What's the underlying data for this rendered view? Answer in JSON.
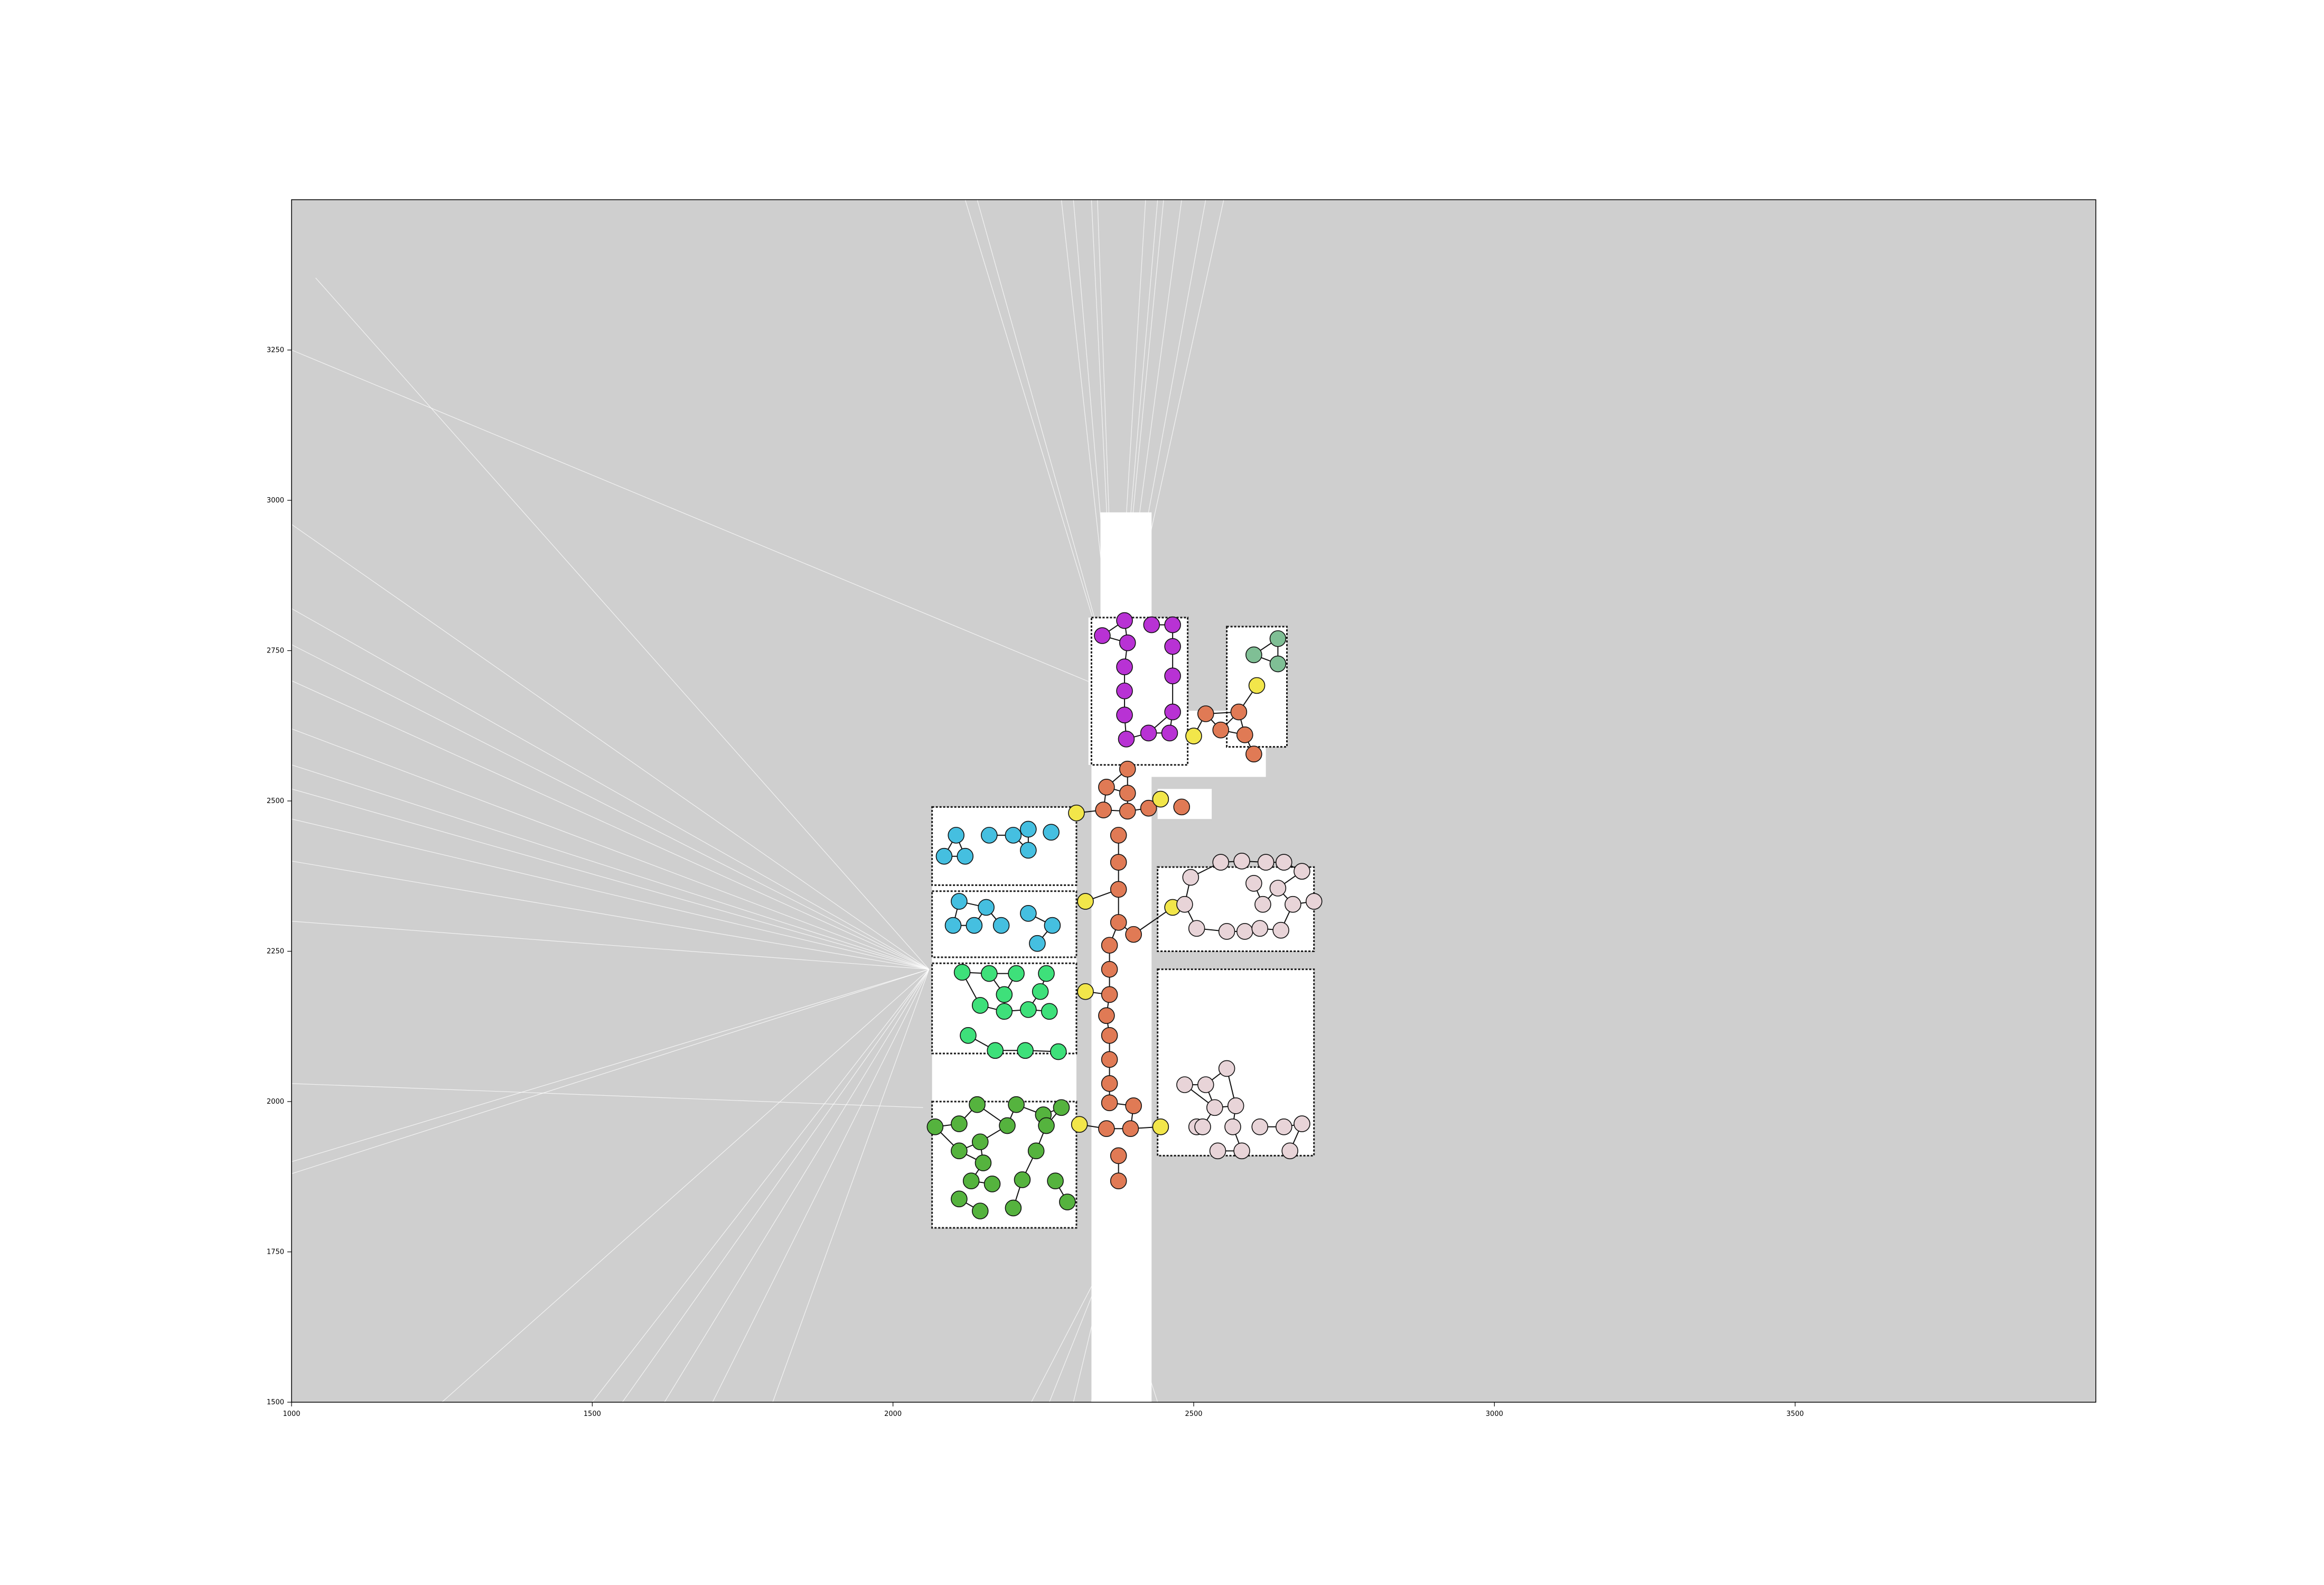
{
  "colors": {
    "background": "#cfcfcf",
    "free_space": "#ffffff",
    "axes_frame": "#000000",
    "corridor": "#e07a55",
    "door": "#f2e64a",
    "room_top": "#b832d4",
    "room_top_right": "#7fbf95",
    "room_blue": "#45bfe0",
    "room_green": "#3ee07a",
    "room_darkgreen": "#55b33e",
    "room_pink": "#e8d4d8"
  },
  "axes": {
    "x_ticks": [
      "1000",
      "1500",
      "2000",
      "2500",
      "3000",
      "3500"
    ],
    "y_ticks": [
      "3250",
      "3000",
      "2750",
      "2500",
      "2250",
      "2000",
      "1750",
      "1500"
    ],
    "xlim": [
      1000,
      4000
    ],
    "ylim": [
      1500,
      3500
    ]
  },
  "chart_data": {
    "type": "scatter",
    "description_free": true,
    "x_tick_values": [
      1000,
      1500,
      2000,
      2500,
      3000,
      3500
    ],
    "y_tick_values": [
      1500,
      1750,
      2000,
      2250,
      2500,
      2750,
      3000,
      3250
    ],
    "groups": {
      "corridor": [
        [
          2390,
          2553
        ],
        [
          2355,
          2523
        ],
        [
          2390,
          2513
        ],
        [
          2425,
          2488
        ],
        [
          2350,
          2485
        ],
        [
          2390,
          2483
        ],
        [
          2480,
          2490
        ],
        [
          2375,
          2443
        ],
        [
          2375,
          2398
        ],
        [
          2375,
          2353
        ],
        [
          2375,
          2298
        ],
        [
          2360,
          2260
        ],
        [
          2400,
          2278
        ],
        [
          2360,
          2220
        ],
        [
          2360,
          2178
        ],
        [
          2355,
          2143
        ],
        [
          2360,
          2110
        ],
        [
          2360,
          2070
        ],
        [
          2360,
          2030
        ],
        [
          2360,
          1998
        ],
        [
          2355,
          1955
        ],
        [
          2395,
          1955
        ],
        [
          2400,
          1993
        ],
        [
          2375,
          1910
        ],
        [
          2375,
          1868
        ],
        [
          2520,
          2645
        ],
        [
          2575,
          2648
        ],
        [
          2545,
          2618
        ],
        [
          2585,
          2610
        ],
        [
          2600,
          2578
        ]
      ],
      "door": [
        [
          2305,
          2480
        ],
        [
          2445,
          2503
        ],
        [
          2320,
          2333
        ],
        [
          2465,
          2323
        ],
        [
          2320,
          2183
        ],
        [
          2310,
          1962
        ],
        [
          2445,
          1958
        ],
        [
          2500,
          2608
        ],
        [
          2605,
          2692
        ]
      ],
      "room_top": [
        [
          2348,
          2775
        ],
        [
          2385,
          2800
        ],
        [
          2390,
          2763
        ],
        [
          2385,
          2723
        ],
        [
          2385,
          2683
        ],
        [
          2385,
          2643
        ],
        [
          2388,
          2603
        ],
        [
          2430,
          2793
        ],
        [
          2465,
          2793
        ],
        [
          2465,
          2757
        ],
        [
          2465,
          2708
        ],
        [
          2465,
          2648
        ],
        [
          2460,
          2613
        ],
        [
          2425,
          2613
        ]
      ],
      "room_top_right": [
        [
          2600,
          2743
        ],
        [
          2640,
          2770
        ],
        [
          2640,
          2728
        ]
      ],
      "room_blue": [
        [
          2085,
          2408
        ],
        [
          2105,
          2443
        ],
        [
          2120,
          2408
        ],
        [
          2160,
          2443
        ],
        [
          2200,
          2443
        ],
        [
          2225,
          2453
        ],
        [
          2225,
          2418
        ],
        [
          2263,
          2448
        ],
        [
          2110,
          2333
        ],
        [
          2100,
          2293
        ],
        [
          2155,
          2323
        ],
        [
          2135,
          2293
        ],
        [
          2180,
          2293
        ],
        [
          2225,
          2313
        ],
        [
          2240,
          2263
        ],
        [
          2265,
          2293
        ]
      ],
      "room_green": [
        [
          2115,
          2215
        ],
        [
          2160,
          2213
        ],
        [
          2205,
          2213
        ],
        [
          2255,
          2213
        ],
        [
          2185,
          2178
        ],
        [
          2145,
          2160
        ],
        [
          2245,
          2183
        ],
        [
          2185,
          2150
        ],
        [
          2225,
          2153
        ],
        [
          2260,
          2150
        ],
        [
          2125,
          2110
        ],
        [
          2170,
          2085
        ],
        [
          2220,
          2085
        ],
        [
          2275,
          2083
        ]
      ],
      "room_darkgreen": [
        [
          2070,
          1958
        ],
        [
          2110,
          1963
        ],
        [
          2140,
          1995
        ],
        [
          2205,
          1995
        ],
        [
          2190,
          1960
        ],
        [
          2250,
          1978
        ],
        [
          2280,
          1990
        ],
        [
          2145,
          1933
        ],
        [
          2110,
          1918
        ],
        [
          2150,
          1898
        ],
        [
          2238,
          1918
        ],
        [
          2130,
          1868
        ],
        [
          2165,
          1863
        ],
        [
          2215,
          1870
        ],
        [
          2270,
          1868
        ],
        [
          2110,
          1838
        ],
        [
          2145,
          1818
        ],
        [
          2200,
          1823
        ],
        [
          2290,
          1833
        ],
        [
          2255,
          1960
        ]
      ],
      "room_pink": [
        [
          2485,
          2328
        ],
        [
          2495,
          2373
        ],
        [
          2545,
          2398
        ],
        [
          2580,
          2400
        ],
        [
          2620,
          2398
        ],
        [
          2650,
          2398
        ],
        [
          2680,
          2383
        ],
        [
          2505,
          2288
        ],
        [
          2555,
          2283
        ],
        [
          2585,
          2283
        ],
        [
          2610,
          2288
        ],
        [
          2645,
          2285
        ],
        [
          2600,
          2363
        ],
        [
          2640,
          2355
        ],
        [
          2615,
          2328
        ],
        [
          2665,
          2328
        ],
        [
          2700,
          2333
        ],
        [
          2555,
          2055
        ],
        [
          2485,
          2028
        ],
        [
          2520,
          2028
        ],
        [
          2535,
          1990
        ],
        [
          2570,
          1993
        ],
        [
          2505,
          1958
        ],
        [
          2515,
          1958
        ],
        [
          2565,
          1958
        ],
        [
          2540,
          1918
        ],
        [
          2580,
          1918
        ],
        [
          2610,
          1958
        ],
        [
          2650,
          1958
        ],
        [
          2660,
          1918
        ],
        [
          2680,
          1963
        ]
      ]
    }
  }
}
